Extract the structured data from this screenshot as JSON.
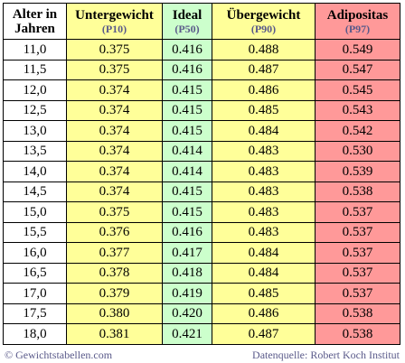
{
  "header": {
    "age_line1": "Alter in",
    "age_line2": "Jahren",
    "underweight": {
      "label": "Untergewicht",
      "percentile": "(P10)"
    },
    "ideal": {
      "label": "Ideal",
      "percentile": "(P50)"
    },
    "overweight": {
      "label": "Übergewicht",
      "percentile": "(P90)"
    },
    "obesity": {
      "label": "Adipositas",
      "percentile": "(P97)"
    }
  },
  "rows": [
    [
      "11,0",
      "0.375",
      "0.416",
      "0.488",
      "0.549"
    ],
    [
      "11,5",
      "0.375",
      "0.416",
      "0.487",
      "0.547"
    ],
    [
      "12,0",
      "0.374",
      "0.415",
      "0.486",
      "0.545"
    ],
    [
      "12,5",
      "0.374",
      "0.415",
      "0.485",
      "0.543"
    ],
    [
      "13,0",
      "0.374",
      "0.415",
      "0.484",
      "0.542"
    ],
    [
      "13,5",
      "0.374",
      "0.414",
      "0.483",
      "0.530"
    ],
    [
      "14,0",
      "0.374",
      "0.414",
      "0.483",
      "0.539"
    ],
    [
      "14,5",
      "0.374",
      "0.415",
      "0.483",
      "0.538"
    ],
    [
      "15,0",
      "0.375",
      "0.415",
      "0.483",
      "0.537"
    ],
    [
      "15,5",
      "0.376",
      "0.416",
      "0.483",
      "0.537"
    ],
    [
      "16,0",
      "0.377",
      "0.417",
      "0.484",
      "0.537"
    ],
    [
      "16,5",
      "0.378",
      "0.418",
      "0.484",
      "0.537"
    ],
    [
      "17,0",
      "0.379",
      "0.419",
      "0.485",
      "0.537"
    ],
    [
      "17,5",
      "0.380",
      "0.420",
      "0.486",
      "0.538"
    ],
    [
      "18,0",
      "0.381",
      "0.421",
      "0.487",
      "0.538"
    ]
  ],
  "footer": {
    "copyright": "© Gewichtstabellen.com",
    "source": "Datenquelle: Robert Koch Institut"
  },
  "colors": {
    "underweight": "#ffff99",
    "ideal": "#ccffcc",
    "overweight": "#ffff99",
    "obesity": "#ff9999"
  }
}
